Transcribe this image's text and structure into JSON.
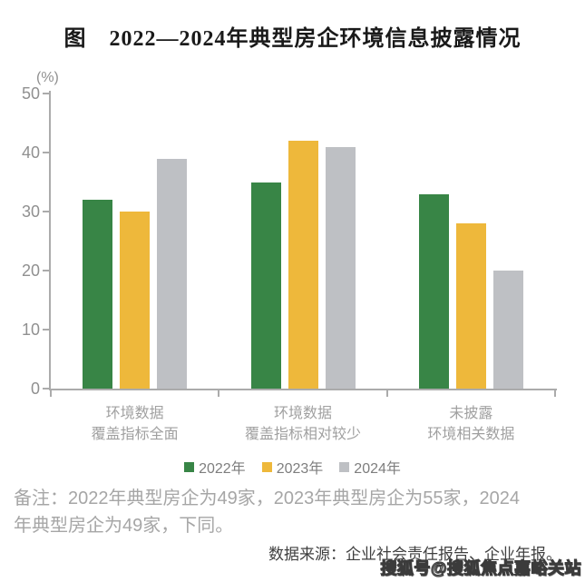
{
  "title": "图　2022—2024年典型房企环境信息披露情况",
  "chart_data": {
    "type": "bar",
    "title": "图　2022—2024年典型房企环境信息披露情况",
    "unit_label": "(%)",
    "ylabel": "(%)",
    "xlabel": "",
    "ylim": [
      0,
      50
    ],
    "ytick_step": 10,
    "grid": false,
    "legend_position": "bottom",
    "categories": [
      [
        "环境数据",
        "覆盖指标全面"
      ],
      [
        "环境数据",
        "覆盖指标相对较少"
      ],
      [
        "未披露",
        "环境相关数据"
      ]
    ],
    "series": [
      {
        "name": "2022年",
        "color": "#388546",
        "values": [
          32,
          35,
          33
        ]
      },
      {
        "name": "2023年",
        "color": "#EEB83B",
        "values": [
          30,
          42,
          28
        ]
      },
      {
        "name": "2024年",
        "color": "#BEC0C4",
        "values": [
          39,
          41,
          20
        ]
      }
    ]
  },
  "note": "备注：2022年典型房企为49家，2023年典型房企为55家，2024\n年典型房企为49家，下同。",
  "source": "数据来源：企业社会责任报告、企业年报。",
  "watermark": "搜狐号@搜狐焦点嘉峪关站",
  "colors": {
    "title": "#1a1a1a",
    "axis": "#ababab",
    "tick-label": "#909090",
    "category-label": "#a0a0a0",
    "legend-label": "#7e7e7e",
    "note": "#a6a6a6",
    "source": "#3f3f3f",
    "series-2022": "#388546",
    "series-2023": "#EEB83B",
    "series-2024": "#BEC0C4"
  }
}
